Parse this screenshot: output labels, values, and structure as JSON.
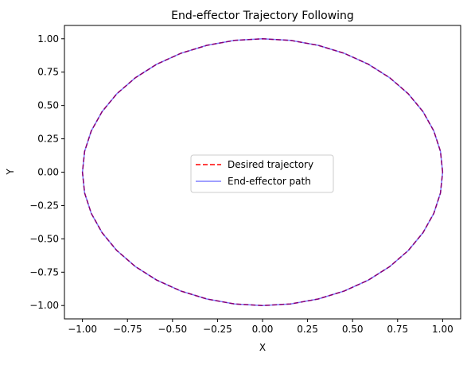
{
  "chart_data": {
    "type": "line",
    "title": "End-effector Trajectory Following",
    "xlabel": "X",
    "ylabel": "Y",
    "xlim": [
      -1.1,
      1.1
    ],
    "ylim": [
      -1.1,
      1.1
    ],
    "x_ticks": [
      -1.0,
      -0.75,
      -0.5,
      -0.25,
      0.0,
      0.25,
      0.5,
      0.75,
      1.0
    ],
    "x_tick_labels": [
      "−1.00",
      "−0.75",
      "−0.50",
      "−0.25",
      "0.00",
      "0.25",
      "0.50",
      "0.75",
      "1.00"
    ],
    "y_ticks": [
      -1.0,
      -0.75,
      -0.5,
      -0.25,
      0.0,
      0.25,
      0.5,
      0.75,
      1.0
    ],
    "y_tick_labels": [
      "−1.00",
      "−0.75",
      "−0.50",
      "−0.25",
      "0.00",
      "0.25",
      "0.50",
      "0.75",
      "1.00"
    ],
    "grid": false,
    "legend_position": "center",
    "series": [
      {
        "name": "Desired trajectory",
        "style": "dashed",
        "color": "#ff0000",
        "x": [
          1.0,
          0.988,
          0.951,
          0.891,
          0.809,
          0.707,
          0.588,
          0.454,
          0.309,
          0.156,
          0.0,
          -0.156,
          -0.309,
          -0.454,
          -0.588,
          -0.707,
          -0.809,
          -0.891,
          -0.951,
          -0.988,
          -1.0,
          -0.988,
          -0.951,
          -0.891,
          -0.809,
          -0.707,
          -0.588,
          -0.454,
          -0.309,
          -0.156,
          0.0,
          0.156,
          0.309,
          0.454,
          0.588,
          0.707,
          0.809,
          0.891,
          0.951,
          0.988,
          1.0
        ],
        "y": [
          0.0,
          0.156,
          0.309,
          0.454,
          0.588,
          0.707,
          0.809,
          0.891,
          0.951,
          0.988,
          1.0,
          0.988,
          0.951,
          0.891,
          0.809,
          0.707,
          0.588,
          0.454,
          0.309,
          0.156,
          0.0,
          -0.156,
          -0.309,
          -0.454,
          -0.588,
          -0.707,
          -0.809,
          -0.891,
          -0.951,
          -0.988,
          -1.0,
          -0.988,
          -0.951,
          -0.891,
          -0.809,
          -0.707,
          -0.588,
          -0.454,
          -0.309,
          -0.156,
          0.0
        ]
      },
      {
        "name": "End-effector path",
        "style": "solid",
        "color": "#0000ff",
        "opacity": 0.5,
        "x": [
          1.0,
          0.988,
          0.951,
          0.891,
          0.809,
          0.707,
          0.588,
          0.454,
          0.309,
          0.156,
          0.0,
          -0.156,
          -0.309,
          -0.454,
          -0.588,
          -0.707,
          -0.809,
          -0.891,
          -0.951,
          -0.988,
          -1.0,
          -0.988,
          -0.951,
          -0.891,
          -0.809,
          -0.707,
          -0.588,
          -0.454,
          -0.309,
          -0.156,
          0.0,
          0.156,
          0.309,
          0.454,
          0.588,
          0.707,
          0.809,
          0.891,
          0.951,
          0.988,
          1.0
        ],
        "y": [
          0.0,
          0.156,
          0.309,
          0.454,
          0.588,
          0.707,
          0.809,
          0.891,
          0.951,
          0.988,
          1.0,
          0.988,
          0.951,
          0.891,
          0.809,
          0.707,
          0.588,
          0.454,
          0.309,
          0.156,
          0.0,
          -0.156,
          -0.309,
          -0.454,
          -0.588,
          -0.707,
          -0.809,
          -0.891,
          -0.951,
          -0.988,
          -1.0,
          -0.988,
          -0.951,
          -0.891,
          -0.809,
          -0.707,
          -0.588,
          -0.454,
          -0.309,
          -0.156,
          0.0
        ]
      }
    ]
  }
}
